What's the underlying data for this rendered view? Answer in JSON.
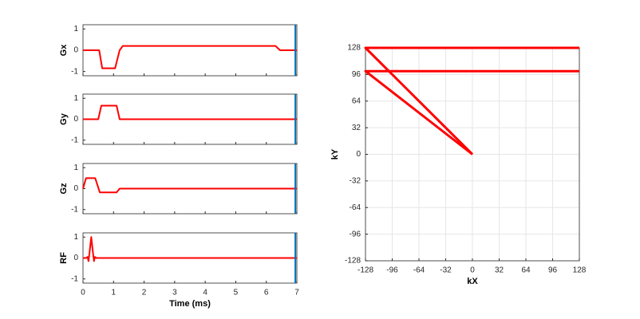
{
  "chart_data": [
    {
      "type": "line",
      "ylabel": "Gx",
      "xlim": [
        0,
        7
      ],
      "ylim": [
        -1.2,
        1.2
      ],
      "xticks": [
        0,
        1,
        2,
        3,
        4,
        5,
        6,
        7
      ],
      "yticks": [
        -1,
        0,
        1
      ],
      "xtick_labels": false,
      "grid": false,
      "series": [
        {
          "color": "#ff0000",
          "x": [
            0,
            0.53,
            0.63,
            1.05,
            1.2,
            1.3,
            6.3,
            6.45,
            7
          ],
          "values": [
            0,
            0,
            -0.85,
            -0.85,
            0,
            0.2,
            0.2,
            0,
            0
          ]
        }
      ],
      "cursor": {
        "value": 6.95,
        "color": "#0072bd"
      }
    },
    {
      "type": "line",
      "ylabel": "Gy",
      "xlim": [
        0,
        7
      ],
      "ylim": [
        -1.2,
        1.2
      ],
      "xticks": [
        0,
        1,
        2,
        3,
        4,
        5,
        6,
        7
      ],
      "yticks": [
        -1,
        0,
        1
      ],
      "xtick_labels": false,
      "grid": false,
      "series": [
        {
          "color": "#ff0000",
          "x": [
            0,
            0.5,
            0.6,
            1.1,
            1.2,
            7
          ],
          "values": [
            0,
            0,
            0.65,
            0.65,
            0,
            0
          ]
        }
      ],
      "cursor": {
        "value": 6.95,
        "color": "#0072bd"
      }
    },
    {
      "type": "line",
      "ylabel": "Gz",
      "xlim": [
        0,
        7
      ],
      "ylim": [
        -1.2,
        1.2
      ],
      "xticks": [
        0,
        1,
        2,
        3,
        4,
        5,
        6,
        7
      ],
      "yticks": [
        -1,
        0,
        1
      ],
      "xtick_labels": false,
      "grid": false,
      "series": [
        {
          "color": "#ff0000",
          "x": [
            0,
            0.1,
            0.4,
            0.55,
            1.1,
            1.2,
            7
          ],
          "values": [
            0,
            0.5,
            0.5,
            -0.18,
            -0.18,
            0,
            0
          ]
        }
      ],
      "cursor": {
        "value": 6.95,
        "color": "#0072bd"
      }
    },
    {
      "type": "line",
      "ylabel": "RF",
      "xlabel": "Time (ms)",
      "xlim": [
        0,
        7
      ],
      "ylim": [
        -1.2,
        1.2
      ],
      "xticks": [
        0,
        1,
        2,
        3,
        4,
        5,
        6,
        7
      ],
      "yticks": [
        -1,
        0,
        1
      ],
      "xtick_labels": true,
      "grid": false,
      "series": [
        {
          "color": "#ff0000",
          "x": [
            0,
            0.1,
            0.15,
            0.18,
            0.21,
            0.27,
            0.33,
            0.36,
            0.39,
            0.44,
            7
          ],
          "values": [
            0,
            0,
            0.05,
            -0.15,
            0.2,
            1,
            0.2,
            -0.15,
            0.05,
            0,
            0
          ]
        }
      ],
      "cursor": {
        "value": 6.95,
        "color": "#0072bd"
      }
    },
    {
      "type": "line",
      "ylabel": "kY",
      "xlabel": "kX",
      "xlim": [
        -128,
        128
      ],
      "ylim": [
        -128,
        128
      ],
      "xticks": [
        -128,
        -96,
        -64,
        -32,
        0,
        32,
        64,
        96,
        128
      ],
      "yticks": [
        -128,
        -96,
        -64,
        -32,
        0,
        32,
        64,
        96,
        128
      ],
      "xtick_labels": true,
      "grid": true,
      "series": [
        {
          "color": "#ff0000",
          "x": [
            0,
            -128,
            128
          ],
          "values": [
            0,
            128,
            128
          ]
        },
        {
          "color": "#ff0000",
          "x": [
            0,
            -128,
            128
          ],
          "values": [
            0,
            100,
            100
          ]
        }
      ]
    }
  ]
}
